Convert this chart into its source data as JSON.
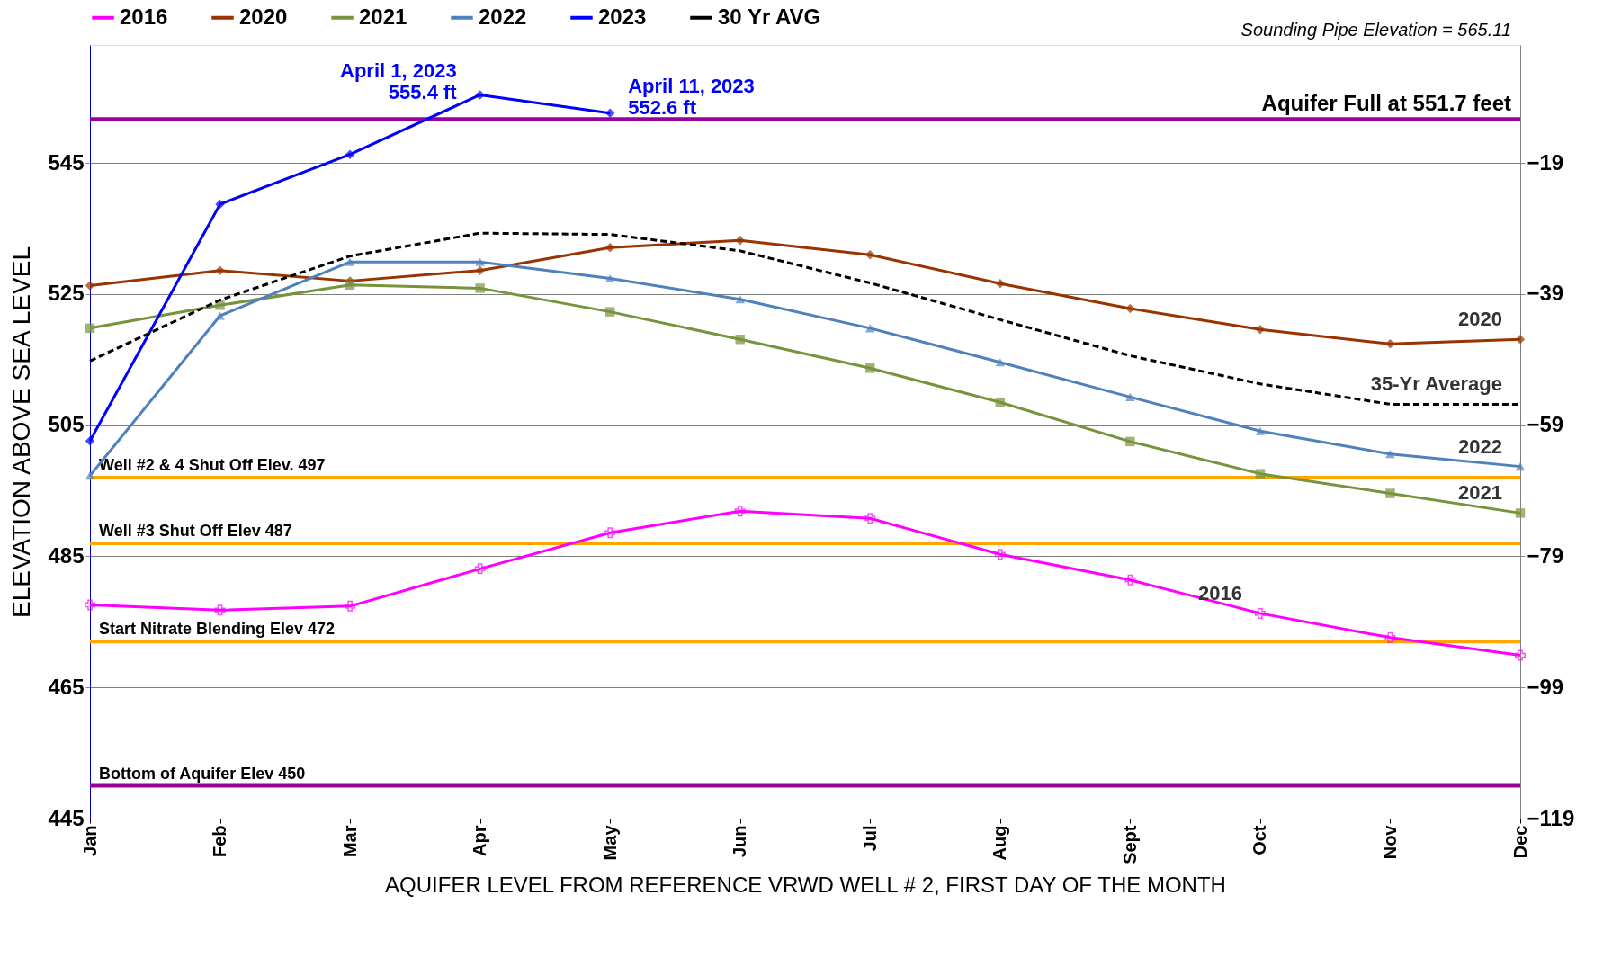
{
  "chart_data": {
    "type": "line",
    "xlabel": "AQUIFER LEVEL FROM REFERENCE VRWD WELL # 2, FIRST DAY OF THE MONTH",
    "ylabel": "ELEVATION ABOVE SEA LEVEL",
    "categories": [
      "Jan",
      "Feb",
      "Mar",
      "Apr",
      "May",
      "Jun",
      "Jul",
      "Aug",
      "Sept",
      "Oct",
      "Nov",
      "Dec"
    ],
    "series": [
      {
        "name": "2016",
        "color": "#ff00ff",
        "marker": "cross",
        "values": [
          477.6,
          476.8,
          477.4,
          483.1,
          488.6,
          491.9,
          490.8,
          485.3,
          481.4,
          476.3,
          472.6,
          469.9
        ]
      },
      {
        "name": "2020",
        "color": "#993300",
        "marker": "diamond",
        "values": [
          526.3,
          528.6,
          527.0,
          528.6,
          532.1,
          533.2,
          531.0,
          526.6,
          522.8,
          519.6,
          517.4,
          518.1
        ]
      },
      {
        "name": "2021",
        "color": "#77933c",
        "marker": "square",
        "values": [
          519.8,
          523.3,
          526.4,
          525.9,
          522.3,
          518.1,
          513.7,
          508.5,
          502.5,
          497.6,
          494.6,
          491.6
        ]
      },
      {
        "name": "2022",
        "color": "#4f81bd",
        "marker": "triangle",
        "values": [
          497.3,
          521.7,
          529.9,
          529.9,
          527.4,
          524.2,
          519.8,
          514.6,
          509.3,
          504.1,
          500.6,
          498.7
        ]
      },
      {
        "name": "2023",
        "color": "#0000ff",
        "marker": "diamond",
        "values": [
          502.6,
          538.7,
          546.3,
          555.4,
          552.6,
          null,
          null,
          null,
          null,
          null,
          null,
          null
        ]
      },
      {
        "name": "30 Yr AVG",
        "color": "#000000",
        "marker": "none",
        "line_style": "dashed",
        "values": [
          514.8,
          524.1,
          530.8,
          534.3,
          534.1,
          531.6,
          526.7,
          521.1,
          515.6,
          511.3,
          508.2,
          508.2
        ]
      }
    ],
    "ylim": [
      445,
      563
    ],
    "yticks": [
      445,
      465,
      485,
      505,
      525,
      545
    ],
    "y2lim": [
      -119,
      -1
    ],
    "y2ticks": [
      -119,
      -99,
      -79,
      -59,
      -39,
      -19
    ],
    "grid": "y",
    "legend": "top",
    "ref_lines": [
      {
        "axis": "y",
        "value": 551.7,
        "label": "Aquifer Full at 551.7 feet",
        "color": "#990099"
      },
      {
        "axis": "y",
        "value": 497,
        "label": "Well #2 & 4 Shut Off Elev. 497",
        "color": "#ffa500"
      },
      {
        "axis": "y",
        "value": 487,
        "label": "Well #3 Shut Off Elev 487",
        "color": "#ffa500"
      },
      {
        "axis": "y",
        "value": 472,
        "label": "Start Nitrate Blending Elev 472",
        "color": "#ffa500"
      },
      {
        "axis": "y",
        "value": 450,
        "label": "Bottom of Aquifer Elev 450",
        "color": "#990099"
      }
    ],
    "annotations": [
      "Sounding Pipe Elevation = 565.11",
      {
        "text": "April 1, 2023\n555.4 ft",
        "x": "Apr",
        "y": 555.4
      },
      {
        "text": "April 11, 2023\n552.6 ft",
        "x": "May",
        "y": 552.6
      },
      {
        "text": "2020",
        "x": "Dec",
        "y": 518.1
      },
      {
        "text": "35-Yr Average",
        "x": "Dec",
        "y": 508.2
      },
      {
        "text": "2022",
        "x": "Dec",
        "y": 498.7
      },
      {
        "text": "2021",
        "x": "Dec",
        "y": 491.6
      },
      {
        "text": "2016",
        "x": "Oct",
        "y": 476.3
      }
    ]
  }
}
